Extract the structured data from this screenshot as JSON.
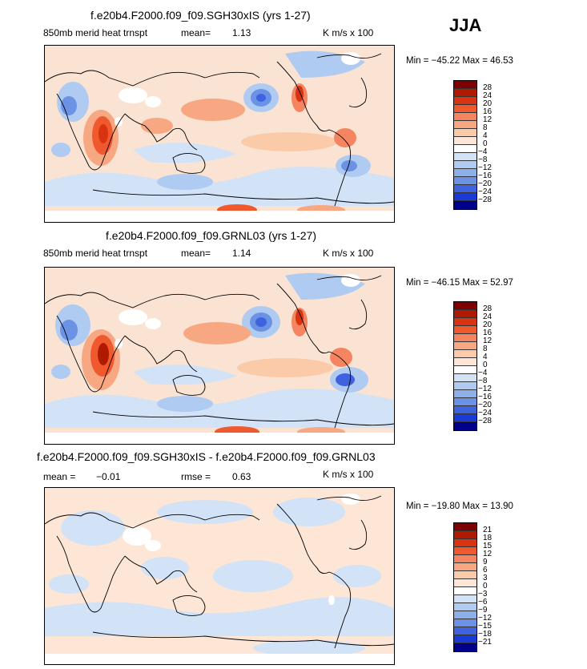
{
  "season": "JJA",
  "panels": [
    {
      "title": "f.e20b4.F2000.f09_f09.SGH30xIS (yrs 1-27)",
      "variable": "850mb merid heat trnspt",
      "mean_label": "mean=",
      "mean_value": "1.13",
      "units": "K m/s x 100",
      "minmax": "Min = −45.22 Max =  46.53",
      "colorbar_labels": [
        "28",
        "24",
        "20",
        "16",
        "12",
        "8",
        "4",
        "0",
        "−4",
        "−8",
        "−12",
        "−16",
        "−20",
        "−24",
        "−28"
      ]
    },
    {
      "title": "f.e20b4.F2000.f09_f09.GRNL03 (yrs 1-27)",
      "variable": "850mb merid heat trnspt",
      "mean_label": "mean=",
      "mean_value": "1.14",
      "units": "K m/s x 100",
      "minmax": "Min = −46.15 Max =  52.97",
      "colorbar_labels": [
        "28",
        "24",
        "20",
        "16",
        "12",
        "8",
        "4",
        "0",
        "−4",
        "−8",
        "−12",
        "−16",
        "−20",
        "−24",
        "−28"
      ]
    },
    {
      "title": "f.e20b4.F2000.f09_f09.SGH30xIS - f.e20b4.F2000.f09_f09.GRNL03",
      "mean_label": "mean =",
      "mean_value": "−0.01",
      "rmse_label": "rmse =",
      "rmse_value": "0.63",
      "units": "K m/s x 100",
      "minmax": "Min = −19.80 Max =  13.90",
      "colorbar_labels": [
        "21",
        "18",
        "15",
        "12",
        "9",
        "6",
        "3",
        "0",
        "−3",
        "−6",
        "−9",
        "−12",
        "−15",
        "−18",
        "−21"
      ]
    }
  ],
  "colors": {
    "colorbar": [
      "#7f0000",
      "#b01a00",
      "#d93412",
      "#f0582e",
      "#f58561",
      "#f7a883",
      "#fbcaa9",
      "#fde6d6",
      "#ffffff",
      "#d2e2f7",
      "#b0cbf1",
      "#8eb0ea",
      "#6c92e6",
      "#3f63df",
      "#1a3ad7",
      "#0d20b0",
      "#00008a"
    ],
    "land_line": "#000000",
    "white_area": "#ffffff"
  }
}
